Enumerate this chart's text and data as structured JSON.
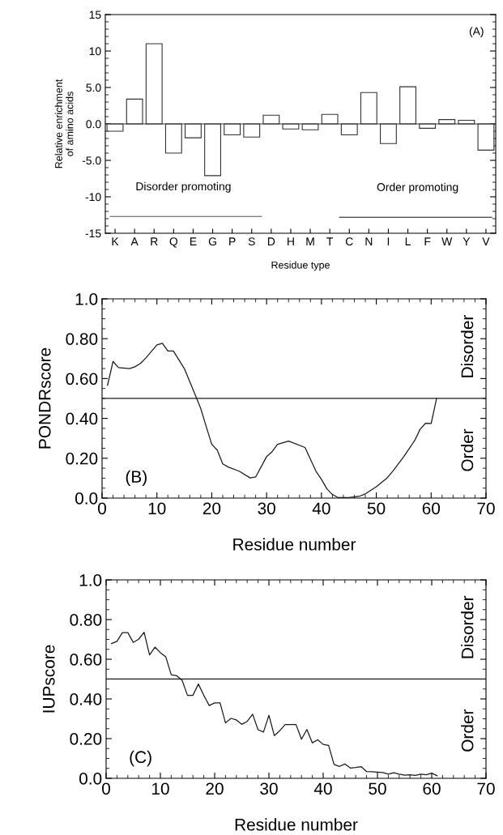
{
  "chart_data": [
    {
      "type": "bar",
      "xlabel": "Residue type",
      "ylabel": "Relative enrichment\nof amino acids",
      "categories": [
        "K",
        "A",
        "R",
        "Q",
        "E",
        "G",
        "P",
        "S",
        "D",
        "H",
        "M",
        "T",
        "C",
        "N",
        "I",
        "L",
        "F",
        "W",
        "Y",
        "V"
      ],
      "values": [
        -1.0,
        3.4,
        11.0,
        -4.0,
        -1.9,
        -7.1,
        -1.5,
        -1.8,
        1.2,
        -0.7,
        -0.8,
        1.3,
        -1.5,
        4.3,
        -2.7,
        5.1,
        -0.6,
        0.6,
        0.5,
        -3.6
      ],
      "color": "#ffffff",
      "ylim": [
        -15,
        15
      ],
      "yticks": [
        -15,
        -10,
        {
          "value": -5,
          "label": "-5.0"
        },
        {
          "value": 0,
          "label": "0.0"
        },
        {
          "value": 5,
          "label": "5.0"
        },
        10,
        15
      ],
      "annotations": [
        "(A)",
        "Disorder promoting",
        "Order promoting"
      ]
    },
    {
      "type": "line",
      "xlabel": "Residue number",
      "ylabel": "PONDRscore",
      "series": [
        {
          "color": "#1a1a1a",
          "x": [
            1,
            2,
            3,
            5,
            6,
            7,
            8,
            10,
            11,
            12,
            13,
            15,
            17,
            18,
            19,
            20,
            21,
            22,
            23,
            25,
            27,
            28,
            30,
            31,
            32,
            34,
            37,
            39,
            40,
            41,
            42,
            43,
            45,
            47,
            48,
            50,
            52,
            53,
            55,
            57,
            58,
            59,
            60,
            61
          ],
          "values": [
            0.566,
            0.686,
            0.655,
            0.65,
            0.659,
            0.676,
            0.704,
            0.769,
            0.777,
            0.738,
            0.738,
            0.65,
            0.517,
            0.449,
            0.358,
            0.27,
            0.241,
            0.172,
            0.156,
            0.135,
            0.101,
            0.106,
            0.208,
            0.233,
            0.27,
            0.286,
            0.254,
            0.135,
            0.094,
            0.046,
            0.018,
            0.003,
            0.003,
            0.01,
            0.021,
            0.057,
            0.102,
            0.135,
            0.208,
            0.289,
            0.346,
            0.376,
            0.374,
            0.501
          ]
        }
      ],
      "xlim": [
        0,
        70
      ],
      "xticks": [
        0,
        10,
        20,
        30,
        40,
        50,
        60,
        70
      ],
      "ylim": [
        0,
        1.0
      ],
      "yticks": [
        {
          "value": 0,
          "label": "0.0"
        },
        {
          "value": 0.2,
          "label": "0.20"
        },
        {
          "value": 0.4,
          "label": "0.40"
        },
        {
          "value": 0.6,
          "label": "0.60"
        },
        {
          "value": 0.8,
          "label": "0.80"
        },
        {
          "value": 1.0,
          "label": "1.0"
        }
      ],
      "ref_lines": [
        {
          "axis": "y",
          "value": 0.5,
          "color": "#1a1a1a"
        }
      ],
      "annotations": [
        "(B)",
        "Disorder",
        "Order"
      ]
    },
    {
      "type": "line",
      "xlabel": "Residue number",
      "ylabel": "IUPscore",
      "series": [
        {
          "color": "#1a1a1a",
          "x": [
            1,
            2,
            3,
            4,
            5,
            6,
            7,
            8,
            9,
            10,
            11,
            12,
            13,
            14,
            15,
            16,
            17,
            18,
            19,
            20,
            21,
            22,
            23,
            24,
            25,
            26,
            27,
            28,
            29,
            30,
            31,
            32,
            33,
            34,
            35,
            36,
            37,
            38,
            39,
            40,
            41,
            42,
            43,
            44,
            45,
            46,
            47,
            48,
            49,
            50,
            51,
            52,
            53,
            54,
            55,
            56,
            57,
            58,
            59,
            60,
            61
          ],
          "values": [
            0.679,
            0.69,
            0.734,
            0.734,
            0.685,
            0.701,
            0.736,
            0.622,
            0.661,
            0.633,
            0.612,
            0.522,
            0.517,
            0.494,
            0.418,
            0.418,
            0.475,
            0.418,
            0.367,
            0.38,
            0.38,
            0.279,
            0.302,
            0.294,
            0.272,
            0.287,
            0.323,
            0.245,
            0.233,
            0.318,
            0.215,
            0.24,
            0.271,
            0.271,
            0.271,
            0.197,
            0.246,
            0.179,
            0.194,
            0.171,
            0.166,
            0.07,
            0.06,
            0.072,
            0.052,
            0.055,
            0.059,
            0.034,
            0.033,
            0.031,
            0.029,
            0.021,
            0.028,
            0.021,
            0.016,
            0.018,
            0.015,
            0.021,
            0.018,
            0.026,
            0.013
          ]
        }
      ],
      "xlim": [
        0,
        70
      ],
      "xticks": [
        0,
        10,
        20,
        30,
        40,
        50,
        60,
        70
      ],
      "ylim": [
        0,
        1.0
      ],
      "yticks": [
        {
          "value": 0,
          "label": "0.0"
        },
        {
          "value": 0.2,
          "label": "0.20"
        },
        {
          "value": 0.4,
          "label": "0.40"
        },
        {
          "value": 0.6,
          "label": "0.60"
        },
        {
          "value": 0.8,
          "label": "0.80"
        },
        {
          "value": 1.0,
          "label": "1.0"
        }
      ],
      "ref_lines": [
        {
          "axis": "y",
          "value": 0.5,
          "color": "#1a1a1a"
        }
      ],
      "annotations": [
        "(C)",
        "Disorder",
        "Order"
      ]
    }
  ]
}
